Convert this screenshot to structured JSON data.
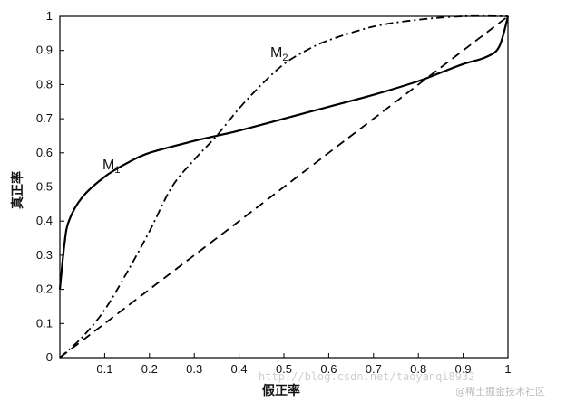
{
  "chart_data": {
    "type": "line",
    "xlabel": "假正率",
    "ylabel": "真正率",
    "xlim": [
      0,
      1
    ],
    "ylim": [
      0,
      1
    ],
    "x_ticks": [
      "0.1",
      "0.2",
      "0.3",
      "0.4",
      "0.5",
      "0.6",
      "0.7",
      "0.8",
      "0.9",
      "1"
    ],
    "y_ticks": [
      "0",
      "0.1",
      "0.2",
      "0.3",
      "0.4",
      "0.5",
      "0.6",
      "0.7",
      "0.8",
      "0.9",
      "1"
    ],
    "grid": false,
    "series": [
      {
        "name": "M1",
        "style": "solid",
        "x": [
          0,
          0.01,
          0.02,
          0.05,
          0.1,
          0.15,
          0.2,
          0.3,
          0.35,
          0.4,
          0.5,
          0.6,
          0.7,
          0.8,
          0.85,
          0.9,
          0.95,
          0.98,
          1.0
        ],
        "y": [
          0.2,
          0.33,
          0.4,
          0.47,
          0.53,
          0.57,
          0.6,
          0.635,
          0.65,
          0.665,
          0.7,
          0.735,
          0.77,
          0.81,
          0.835,
          0.86,
          0.88,
          0.91,
          1.0
        ]
      },
      {
        "name": "M2",
        "style": "dashdot",
        "x": [
          0,
          0.05,
          0.1,
          0.15,
          0.2,
          0.25,
          0.3,
          0.35,
          0.4,
          0.45,
          0.5,
          0.55,
          0.6,
          0.7,
          0.8,
          0.9,
          1.0
        ],
        "y": [
          0,
          0.06,
          0.14,
          0.25,
          0.37,
          0.5,
          0.58,
          0.65,
          0.73,
          0.8,
          0.86,
          0.9,
          0.93,
          0.97,
          0.99,
          1.0,
          1.0
        ]
      },
      {
        "name": "",
        "style": "dashed",
        "x": [
          0,
          1
        ],
        "y": [
          0,
          1
        ]
      }
    ],
    "annotations": [
      {
        "text": "M",
        "sub": "1"
      },
      {
        "text": "M",
        "sub": "2"
      }
    ],
    "zero_label": "0"
  },
  "watermark": {
    "url": "http://blog.csdn.net/taoyanqi8932",
    "site": "@稀土掘金技术社区"
  }
}
